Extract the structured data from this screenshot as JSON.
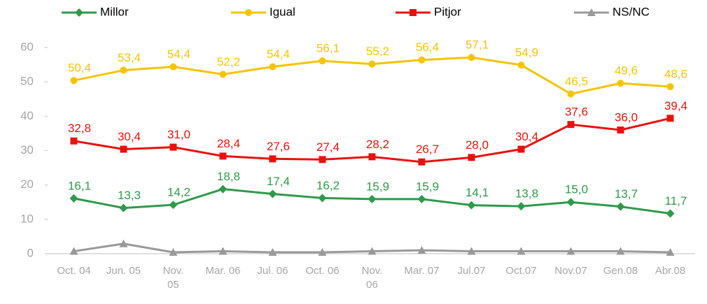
{
  "chart_data": {
    "type": "line",
    "categories": [
      "Oct. 04",
      "Jun. 05",
      "Nov. 05",
      "Mar. 06",
      "Jul. 06",
      "Oct. 06",
      "Nov. 06",
      "Mar. 07",
      "Jul.07",
      "Oct.07",
      "Nov.07",
      "Gen.08",
      "Abr.08"
    ],
    "series": [
      {
        "name": "Millor",
        "color": "#2e9a4a",
        "marker": "diamond",
        "values": [
          16.1,
          13.3,
          14.2,
          18.8,
          17.4,
          16.2,
          15.9,
          15.9,
          14.1,
          13.8,
          15.0,
          13.7,
          11.7
        ],
        "value_labels": [
          "16,1",
          "13,3",
          "14,2",
          "18,8",
          "17,4",
          "16,2",
          "15,9",
          "15,9",
          "14,1",
          "13,8",
          "15,0",
          "13,7",
          "11,7"
        ]
      },
      {
        "name": "Igual",
        "color": "#f5c400",
        "marker": "circle",
        "values": [
          50.4,
          53.4,
          54.4,
          52.2,
          54.4,
          56.1,
          55.2,
          56.4,
          57.1,
          54.9,
          46.5,
          49.6,
          48.6
        ],
        "value_labels": [
          "50,4",
          "53,4",
          "54,4",
          "52,2",
          "54,4",
          "56,1",
          "55,2",
          "56,4",
          "57,1",
          "54,9",
          "46,5",
          "49,6",
          "48,6"
        ]
      },
      {
        "name": "Pitjor",
        "color": "#e8120c",
        "marker": "square",
        "values": [
          32.8,
          30.4,
          31.0,
          28.4,
          27.6,
          27.4,
          28.2,
          26.7,
          28.0,
          30.4,
          37.6,
          36.0,
          39.4
        ],
        "value_labels": [
          "32,8",
          "30,4",
          "31,0",
          "28,4",
          "27,6",
          "27,4",
          "28,2",
          "26,7",
          "28,0",
          "30,4",
          "37,6",
          "36,0",
          "39,4"
        ]
      },
      {
        "name": "NS/NC",
        "color": "#999999",
        "marker": "triangle",
        "values": [
          0.7,
          2.9,
          0.4,
          0.7,
          0.4,
          0.4,
          0.7,
          1.0,
          0.7,
          0.7,
          0.7,
          0.7,
          0.4
        ]
      }
    ],
    "ylim": [
      0,
      60
    ],
    "yticks": [
      0,
      10,
      20,
      30,
      40,
      50,
      60
    ],
    "grid": false,
    "legend": "top"
  }
}
